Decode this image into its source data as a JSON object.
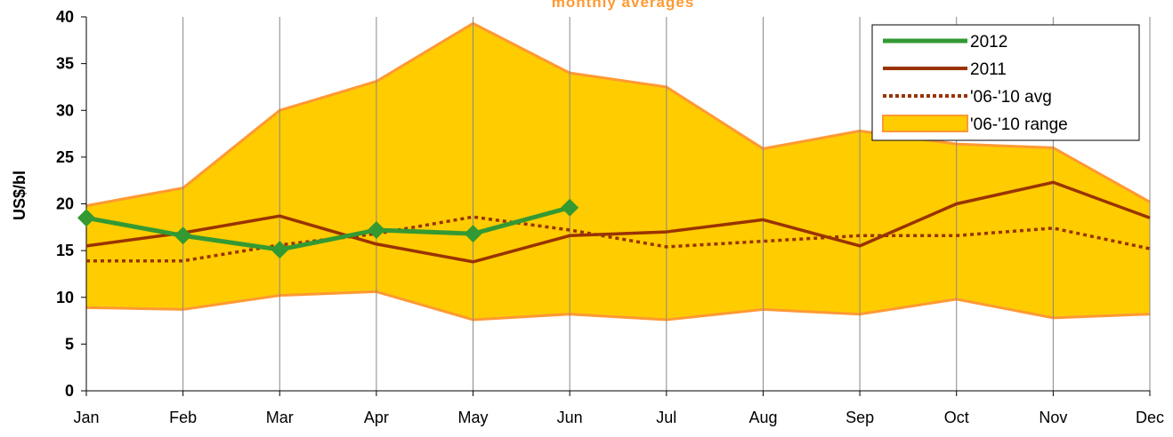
{
  "chart_data": {
    "type": "line",
    "title": "monthly averages",
    "y_label": "US$/bl",
    "categories": [
      "Jan",
      "Feb",
      "Mar",
      "Apr",
      "May",
      "Jun",
      "Jul",
      "Aug",
      "Sep",
      "Oct",
      "Nov",
      "Dec"
    ],
    "ylim": [
      0,
      40
    ],
    "yticks": [
      0,
      5,
      10,
      15,
      20,
      25,
      30,
      35,
      40
    ],
    "grid": "vertical",
    "legend": "top-right",
    "series": [
      {
        "name": "2012",
        "color": "#339933",
        "style": "solid",
        "marker": "diamond",
        "values": [
          18.5,
          16.6,
          15.1,
          17.2,
          16.8,
          19.6,
          null,
          null,
          null,
          null,
          null,
          null
        ]
      },
      {
        "name": "2011",
        "color": "#993300",
        "style": "solid",
        "values": [
          15.5,
          16.9,
          18.7,
          15.7,
          13.8,
          16.6,
          17.0,
          18.3,
          15.5,
          20.0,
          22.3,
          18.5
        ]
      },
      {
        "name": "'06-'10 avg",
        "color": "#993300",
        "style": "dotted",
        "values": [
          13.9,
          13.9,
          15.6,
          16.8,
          18.6,
          17.2,
          15.4,
          16.0,
          16.6,
          16.6,
          17.4,
          15.2
        ]
      },
      {
        "name": "'06-'10 range",
        "color": "#ffcc00",
        "edge": "#ff9933",
        "style": "band",
        "low": [
          8.9,
          8.7,
          10.2,
          10.6,
          7.6,
          8.2,
          7.6,
          8.7,
          8.2,
          9.8,
          7.8,
          8.2
        ],
        "high": [
          19.8,
          21.7,
          30.0,
          33.1,
          39.3,
          34.0,
          32.5,
          25.9,
          27.8,
          26.4,
          26.0,
          20.2
        ]
      }
    ]
  }
}
